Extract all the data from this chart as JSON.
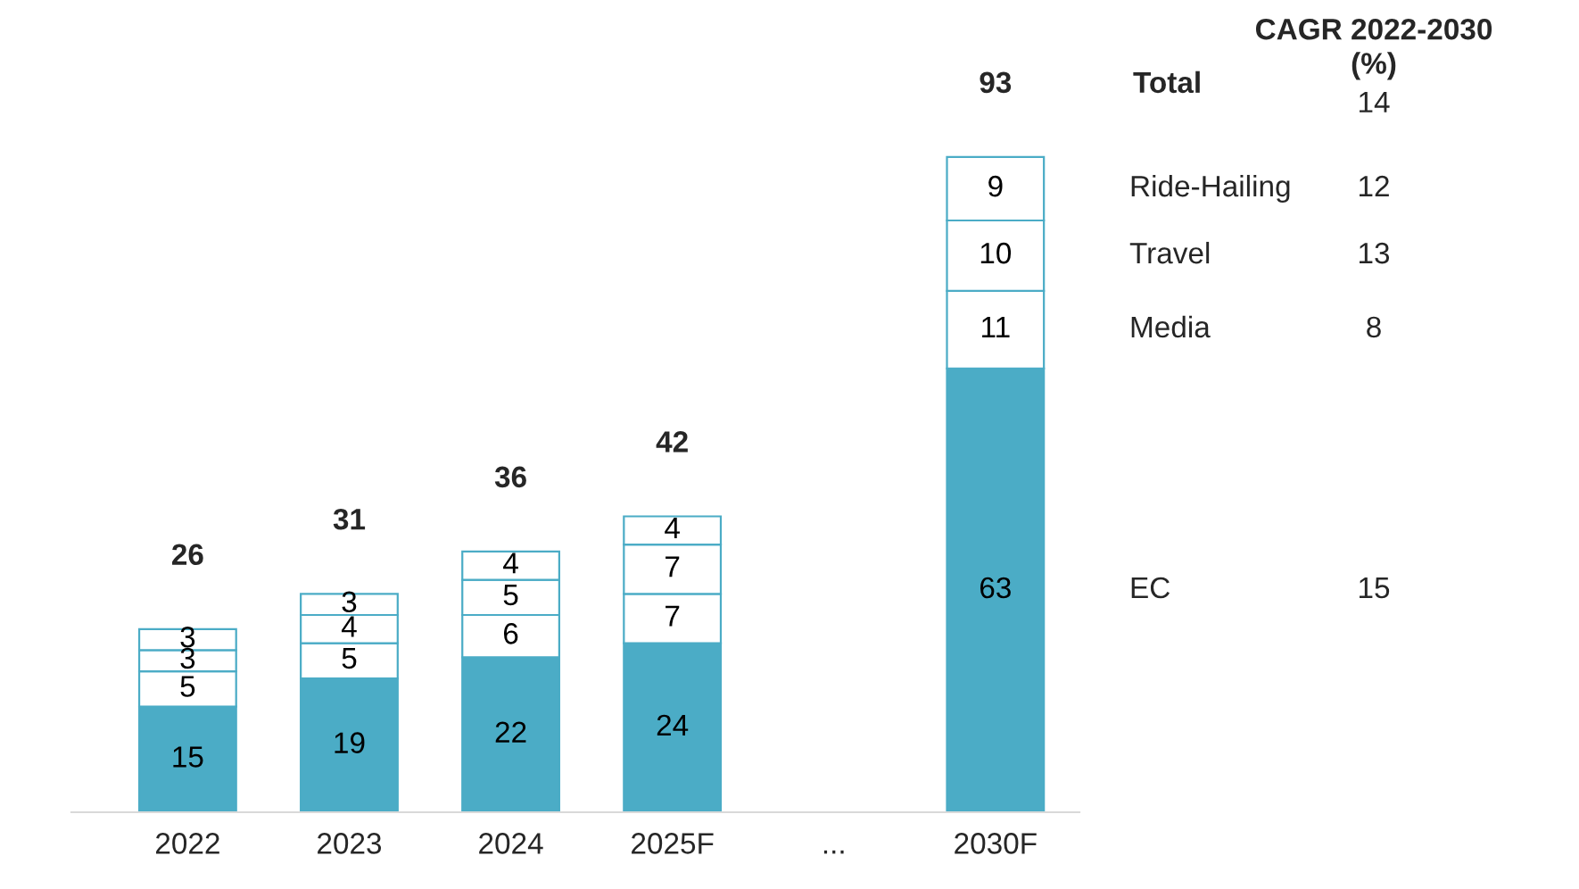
{
  "chart_data": {
    "type": "bar",
    "stacked": true,
    "data_labels": true,
    "legend": false,
    "grid": false,
    "tick_labels": "x",
    "categories": [
      "2022",
      "2023",
      "2024",
      "2025F",
      "...",
      "2030F"
    ],
    "series": [
      {
        "name": "EC",
        "color": "#4bacc6",
        "values": [
          15,
          19,
          22,
          24,
          null,
          63
        ]
      },
      {
        "name": "Media",
        "color": "#ffffff",
        "values": [
          5,
          5,
          6,
          7,
          null,
          11
        ]
      },
      {
        "name": "Travel",
        "color": "#ffffff",
        "values": [
          3,
          4,
          5,
          7,
          null,
          10
        ]
      },
      {
        "name": "Ride-Hailing",
        "color": "#ffffff",
        "values": [
          3,
          3,
          4,
          4,
          null,
          9
        ]
      }
    ],
    "totals": [
      "26",
      "31",
      "36",
      "42",
      null,
      "93"
    ],
    "legend_title": "CAGR 2022-2030\n(%)",
    "annotations": [
      "Total",
      "14",
      "15",
      "8",
      "13",
      "12"
    ]
  }
}
